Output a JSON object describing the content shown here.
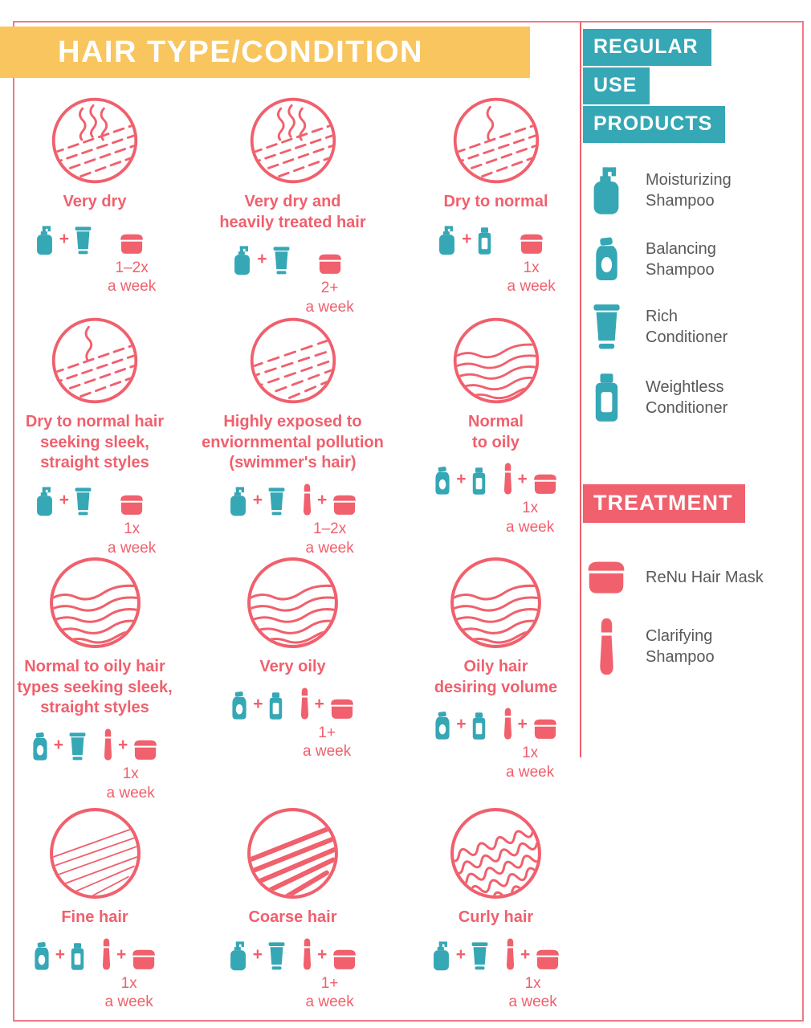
{
  "page": {
    "title": "HAIR TYPE/CONDITION",
    "colors": {
      "teal": "#35a7b5",
      "pink": "#f0606d",
      "yellow": "#f8c55f",
      "label_gray": "#58595b",
      "border_pink": "#ed7a87"
    }
  },
  "grid": {
    "cells": [
      {
        "label": "Very dry",
        "icon": "steam3",
        "regular": [
          "moisturizing",
          "rich"
        ],
        "treatment": [
          "mask"
        ],
        "freq": "1–2x\na week"
      },
      {
        "label": "Very dry and\nheavily treated hair",
        "icon": "steam3",
        "regular": [
          "moisturizing",
          "rich"
        ],
        "treatment": [
          "mask"
        ],
        "freq": "2+\na week"
      },
      {
        "label": "Dry to normal",
        "icon": "steam1",
        "regular": [
          "moisturizing",
          "weightless"
        ],
        "treatment": [
          "mask"
        ],
        "freq": "1x\na week"
      },
      {
        "label": "Dry to normal hair\nseeking sleek,\nstraight styles",
        "icon": "steam1",
        "regular": [
          "moisturizing",
          "rich"
        ],
        "treatment": [
          "mask"
        ],
        "freq": "1x\na week"
      },
      {
        "label": "Highly exposed to\nenviornmental pollution\n(swimmer's hair)",
        "icon": "dashes",
        "regular": [
          "moisturizing",
          "rich"
        ],
        "treatment": [
          "clarifying",
          "mask"
        ],
        "freq": "1–2x\na week"
      },
      {
        "label": "Normal\nto oily",
        "icon": "waves",
        "regular": [
          "balancing",
          "weightless"
        ],
        "treatment": [
          "clarifying",
          "mask"
        ],
        "freq": "1x\na week"
      },
      {
        "label": "Normal to oily hair\ntypes seeking sleek,\nstraight styles",
        "icon": "waves",
        "regular": [
          "balancing",
          "rich"
        ],
        "treatment": [
          "clarifying",
          "mask"
        ],
        "freq": "1x\na week"
      },
      {
        "label": "Very oily",
        "icon": "waves",
        "regular": [
          "balancing",
          "weightless"
        ],
        "treatment": [
          "clarifying",
          "mask"
        ],
        "freq": "1+\na week"
      },
      {
        "label": "Oily hair\ndesiring volume",
        "icon": "waves",
        "regular": [
          "balancing",
          "weightless"
        ],
        "treatment": [
          "clarifying",
          "mask"
        ],
        "freq": "1x\na week"
      },
      {
        "label": "Fine hair",
        "icon": "fine",
        "regular": [
          "balancing",
          "weightless"
        ],
        "treatment": [
          "clarifying",
          "mask"
        ],
        "freq": "1x\na week"
      },
      {
        "label": "Coarse hair",
        "icon": "coarse",
        "regular": [
          "moisturizing",
          "rich"
        ],
        "treatment": [
          "clarifying",
          "mask"
        ],
        "freq": "1+\na week"
      },
      {
        "label": "Curly hair",
        "icon": "curls",
        "regular": [
          "moisturizing",
          "rich"
        ],
        "treatment": [
          "clarifying",
          "mask"
        ],
        "freq": "1x\na week"
      }
    ]
  },
  "sidebar": {
    "regular_header": [
      "REGULAR",
      "USE",
      "PRODUCTS"
    ],
    "regular_items": [
      {
        "icon": "moisturizing",
        "label": "Moisturizing\nShampoo"
      },
      {
        "icon": "balancing",
        "label": "Balancing\nShampoo"
      },
      {
        "icon": "rich",
        "label": "Rich\nConditioner"
      },
      {
        "icon": "weightless",
        "label": "Weightless\nConditioner"
      }
    ],
    "treatment_header": "TREATMENT",
    "treatment_items": [
      {
        "icon": "mask",
        "label": "ReNu Hair Mask"
      },
      {
        "icon": "clarifying",
        "label": "Clarifying\nShampoo"
      }
    ]
  }
}
